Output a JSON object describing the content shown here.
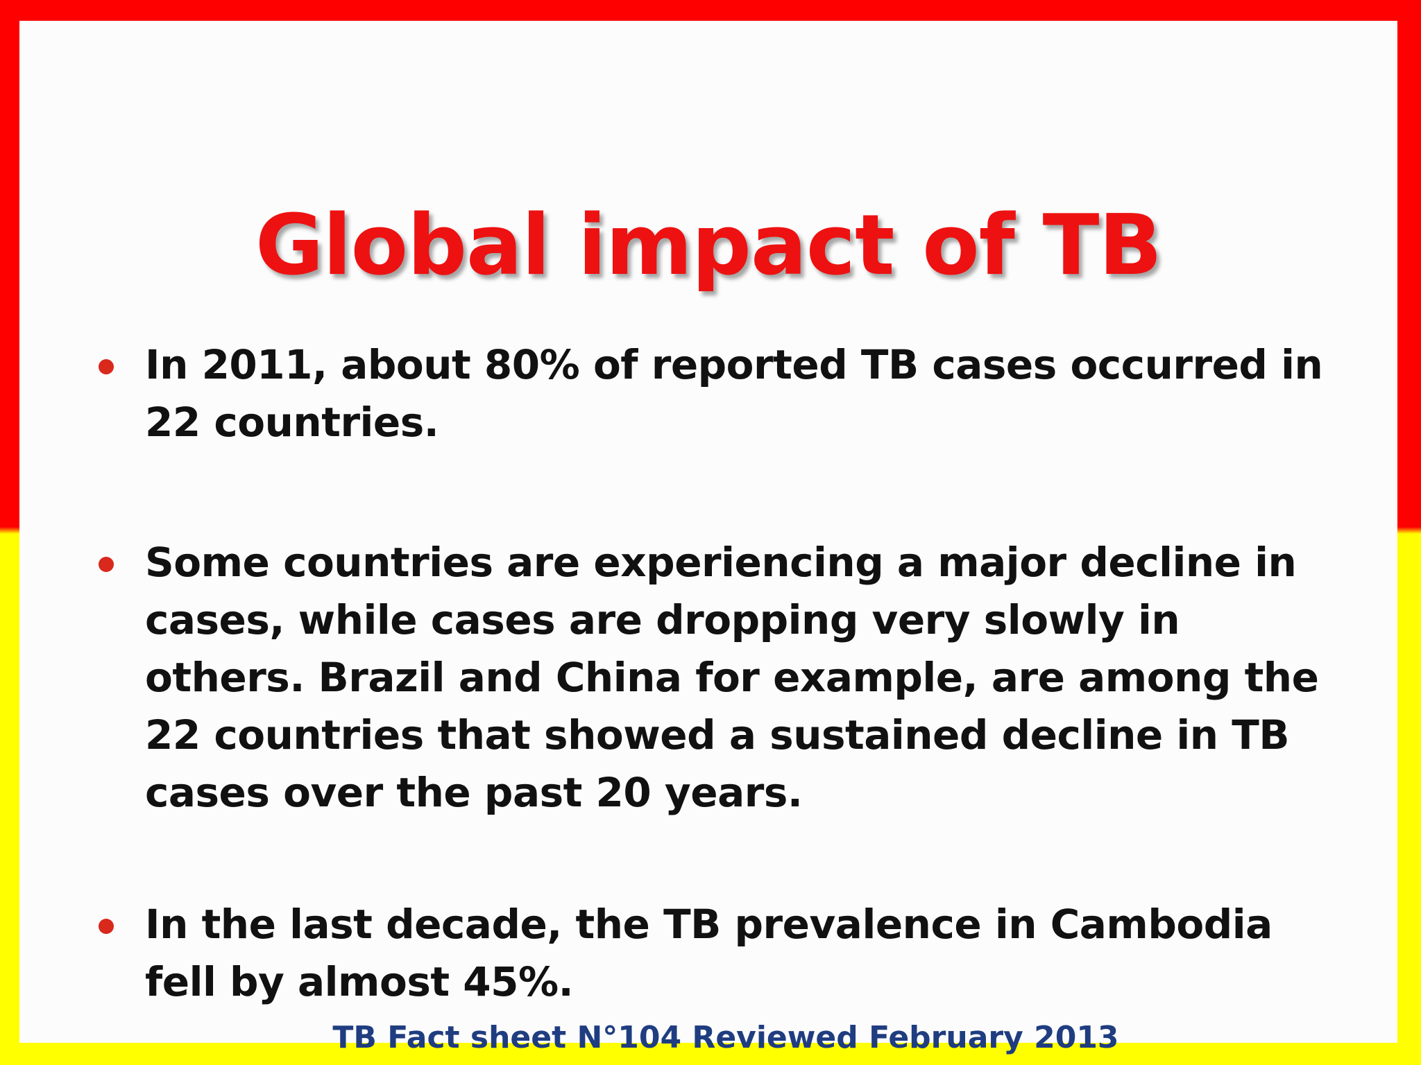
{
  "slide": {
    "title": "Global impact of TB",
    "bullets": [
      {
        "text": "In 2011, about 80% of reported TB cases occurred in 22 countries."
      },
      {
        "text": "Some countries are experiencing a major decline in cases, while cases are dropping very slowly in others. Brazil and China for example, are among the 22 countries that showed a sustained decline in TB cases over the past 20 years."
      },
      {
        "text": "In the last decade, the TB prevalence in Cambodia fell by almost 45%."
      }
    ],
    "source": "TB Fact sheet N°104 Reviewed February 2013"
  },
  "colors": {
    "border_top": "#ff0000",
    "border_bottom": "#ffff00",
    "title": "#ee1111",
    "bullet_dot": "#d9281c",
    "body_text": "#111111",
    "source_text": "#1f3d80"
  }
}
